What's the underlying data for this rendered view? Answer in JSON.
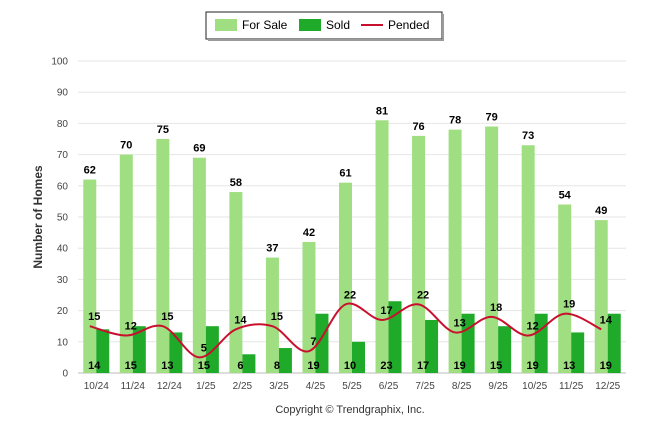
{
  "chart_data": {
    "type": "bar",
    "title": "",
    "xlabel": "",
    "ylabel": "Number of Homes",
    "ylim": [
      0,
      100
    ],
    "yticks": [
      0,
      10,
      20,
      30,
      40,
      50,
      60,
      70,
      80,
      90,
      100
    ],
    "categories": [
      "10/24",
      "11/24",
      "12/24",
      "1/25",
      "2/25",
      "3/25",
      "4/25",
      "5/25",
      "6/25",
      "7/25",
      "8/25",
      "9/25",
      "10/25",
      "11/25",
      "12/25"
    ],
    "series": [
      {
        "name": "For Sale",
        "kind": "bar",
        "color": "#a0de82",
        "values": [
          62,
          70,
          75,
          69,
          58,
          37,
          42,
          61,
          81,
          76,
          78,
          79,
          73,
          54,
          49
        ]
      },
      {
        "name": "Sold",
        "kind": "bar",
        "color": "#1faa2a",
        "values": [
          14,
          15,
          13,
          15,
          6,
          8,
          19,
          10,
          23,
          17,
          19,
          15,
          19,
          13,
          19
        ]
      },
      {
        "name": "Pended",
        "kind": "line",
        "color": "#c8102e",
        "values": [
          15,
          12,
          15,
          5,
          14,
          15,
          7,
          22,
          17,
          22,
          13,
          18,
          12,
          19,
          14
        ]
      }
    ],
    "legend_position": "top-center",
    "grid": true
  },
  "footer": {
    "copyright": "Copyright © Trendgraphix, Inc."
  }
}
